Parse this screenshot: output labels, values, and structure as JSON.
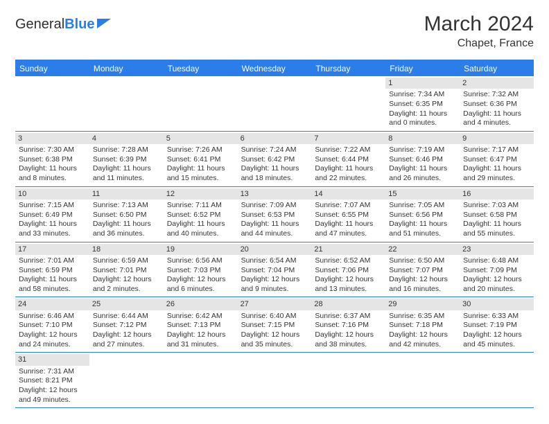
{
  "logo": {
    "part1": "General",
    "part2": "Blue"
  },
  "title": "March 2024",
  "location": "Chapet, France",
  "colors": {
    "accent": "#2b7de9",
    "daynum_bg": "#e5e5e5",
    "text": "#333333",
    "bg": "#ffffff"
  },
  "dayNames": [
    "Sunday",
    "Monday",
    "Tuesday",
    "Wednesday",
    "Thursday",
    "Friday",
    "Saturday"
  ],
  "startOffset": 5,
  "days": [
    {
      "n": 1,
      "sunrise": "7:34 AM",
      "sunset": "6:35 PM",
      "daylight": "11 hours and 0 minutes."
    },
    {
      "n": 2,
      "sunrise": "7:32 AM",
      "sunset": "6:36 PM",
      "daylight": "11 hours and 4 minutes."
    },
    {
      "n": 3,
      "sunrise": "7:30 AM",
      "sunset": "6:38 PM",
      "daylight": "11 hours and 8 minutes."
    },
    {
      "n": 4,
      "sunrise": "7:28 AM",
      "sunset": "6:39 PM",
      "daylight": "11 hours and 11 minutes."
    },
    {
      "n": 5,
      "sunrise": "7:26 AM",
      "sunset": "6:41 PM",
      "daylight": "11 hours and 15 minutes."
    },
    {
      "n": 6,
      "sunrise": "7:24 AM",
      "sunset": "6:42 PM",
      "daylight": "11 hours and 18 minutes."
    },
    {
      "n": 7,
      "sunrise": "7:22 AM",
      "sunset": "6:44 PM",
      "daylight": "11 hours and 22 minutes."
    },
    {
      "n": 8,
      "sunrise": "7:19 AM",
      "sunset": "6:46 PM",
      "daylight": "11 hours and 26 minutes."
    },
    {
      "n": 9,
      "sunrise": "7:17 AM",
      "sunset": "6:47 PM",
      "daylight": "11 hours and 29 minutes."
    },
    {
      "n": 10,
      "sunrise": "7:15 AM",
      "sunset": "6:49 PM",
      "daylight": "11 hours and 33 minutes."
    },
    {
      "n": 11,
      "sunrise": "7:13 AM",
      "sunset": "6:50 PM",
      "daylight": "11 hours and 36 minutes."
    },
    {
      "n": 12,
      "sunrise": "7:11 AM",
      "sunset": "6:52 PM",
      "daylight": "11 hours and 40 minutes."
    },
    {
      "n": 13,
      "sunrise": "7:09 AM",
      "sunset": "6:53 PM",
      "daylight": "11 hours and 44 minutes."
    },
    {
      "n": 14,
      "sunrise": "7:07 AM",
      "sunset": "6:55 PM",
      "daylight": "11 hours and 47 minutes."
    },
    {
      "n": 15,
      "sunrise": "7:05 AM",
      "sunset": "6:56 PM",
      "daylight": "11 hours and 51 minutes."
    },
    {
      "n": 16,
      "sunrise": "7:03 AM",
      "sunset": "6:58 PM",
      "daylight": "11 hours and 55 minutes."
    },
    {
      "n": 17,
      "sunrise": "7:01 AM",
      "sunset": "6:59 PM",
      "daylight": "11 hours and 58 minutes."
    },
    {
      "n": 18,
      "sunrise": "6:59 AM",
      "sunset": "7:01 PM",
      "daylight": "12 hours and 2 minutes."
    },
    {
      "n": 19,
      "sunrise": "6:56 AM",
      "sunset": "7:03 PM",
      "daylight": "12 hours and 6 minutes."
    },
    {
      "n": 20,
      "sunrise": "6:54 AM",
      "sunset": "7:04 PM",
      "daylight": "12 hours and 9 minutes."
    },
    {
      "n": 21,
      "sunrise": "6:52 AM",
      "sunset": "7:06 PM",
      "daylight": "12 hours and 13 minutes."
    },
    {
      "n": 22,
      "sunrise": "6:50 AM",
      "sunset": "7:07 PM",
      "daylight": "12 hours and 16 minutes."
    },
    {
      "n": 23,
      "sunrise": "6:48 AM",
      "sunset": "7:09 PM",
      "daylight": "12 hours and 20 minutes."
    },
    {
      "n": 24,
      "sunrise": "6:46 AM",
      "sunset": "7:10 PM",
      "daylight": "12 hours and 24 minutes."
    },
    {
      "n": 25,
      "sunrise": "6:44 AM",
      "sunset": "7:12 PM",
      "daylight": "12 hours and 27 minutes."
    },
    {
      "n": 26,
      "sunrise": "6:42 AM",
      "sunset": "7:13 PM",
      "daylight": "12 hours and 31 minutes."
    },
    {
      "n": 27,
      "sunrise": "6:40 AM",
      "sunset": "7:15 PM",
      "daylight": "12 hours and 35 minutes."
    },
    {
      "n": 28,
      "sunrise": "6:37 AM",
      "sunset": "7:16 PM",
      "daylight": "12 hours and 38 minutes."
    },
    {
      "n": 29,
      "sunrise": "6:35 AM",
      "sunset": "7:18 PM",
      "daylight": "12 hours and 42 minutes."
    },
    {
      "n": 30,
      "sunrise": "6:33 AM",
      "sunset": "7:19 PM",
      "daylight": "12 hours and 45 minutes."
    },
    {
      "n": 31,
      "sunrise": "7:31 AM",
      "sunset": "8:21 PM",
      "daylight": "12 hours and 49 minutes."
    }
  ]
}
